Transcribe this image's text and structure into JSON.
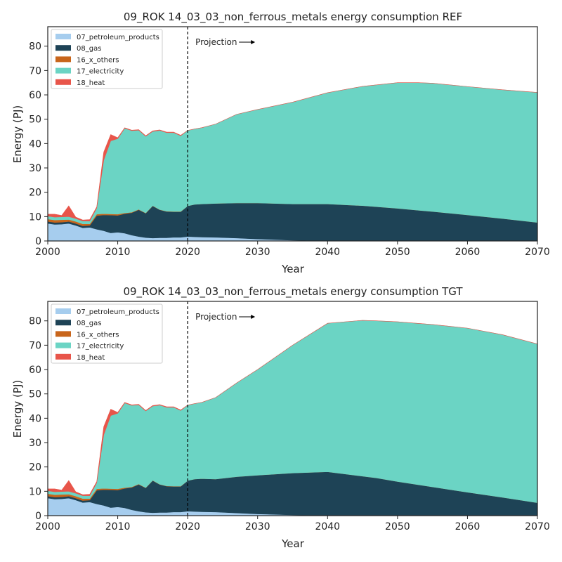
{
  "colors": {
    "07_petroleum_products": "#a6cdee",
    "08_gas": "#1e4356",
    "16_x_others": "#c8651b",
    "17_electricity": "#6bd4c4",
    "18_heat": "#e8554a"
  },
  "chart_data": [
    {
      "type": "area",
      "stacked": true,
      "title": "09_ROK 14_03_03_non_ferrous_metals energy consumption REF",
      "xlabel": "Year",
      "ylabel": "Energy (PJ)",
      "xlim": [
        2000,
        2070
      ],
      "ylim": [
        0,
        88
      ],
      "xticks": [
        2000,
        2010,
        2020,
        2030,
        2040,
        2050,
        2060,
        2070
      ],
      "yticks": [
        0,
        10,
        20,
        30,
        40,
        50,
        60,
        70,
        80
      ],
      "legend": "top-left",
      "annotation": {
        "text": "Projection",
        "x": 2020
      },
      "x": [
        2000,
        2001,
        2002,
        2003,
        2004,
        2005,
        2006,
        2007,
        2008,
        2009,
        2010,
        2011,
        2012,
        2013,
        2014,
        2015,
        2016,
        2017,
        2018,
        2019,
        2020,
        2021,
        2022,
        2024,
        2027,
        2030,
        2035,
        2040,
        2045,
        2050,
        2053,
        2055,
        2060,
        2065,
        2070
      ],
      "series": [
        {
          "name": "07_petroleum_products",
          "values": [
            7.2,
            6.8,
            6.9,
            7.2,
            6.4,
            5.4,
            5.6,
            4.8,
            4.2,
            3.3,
            3.6,
            3.2,
            2.4,
            1.8,
            1.4,
            1.2,
            1.3,
            1.3,
            1.5,
            1.5,
            1.8,
            1.7,
            1.6,
            1.5,
            1.2,
            0.8,
            0.3,
            0,
            0,
            0,
            0,
            0,
            0,
            0,
            0
          ]
        },
        {
          "name": "08_gas",
          "values": [
            0.8,
            0.8,
            0.8,
            0.8,
            0.8,
            0.8,
            0.8,
            5.6,
            6.5,
            7.3,
            6.9,
            8.0,
            9.2,
            11.0,
            10.0,
            13.2,
            11.5,
            10.8,
            10.5,
            10.5,
            12.6,
            13.3,
            13.6,
            13.9,
            14.4,
            14.8,
            14.9,
            15.2,
            14.5,
            13.4,
            12.6,
            12.1,
            10.7,
            9.2,
            7.6
          ]
        },
        {
          "name": "16_x_others",
          "values": [
            1.0,
            1.0,
            1.0,
            0.8,
            0.8,
            0.8,
            0.6,
            0.6,
            0.5,
            0.5,
            0.5,
            0.3,
            0.2,
            0.2,
            0.1,
            0.1,
            0.1,
            0.1,
            0.1,
            0.1,
            0,
            0,
            0,
            0,
            0,
            0,
            0,
            0,
            0,
            0,
            0,
            0,
            0,
            0,
            0
          ]
        },
        {
          "name": "17_electricity",
          "values": [
            1.2,
            1.2,
            1.2,
            1.2,
            1.2,
            1.2,
            1.2,
            2.5,
            22.0,
            30.0,
            31.0,
            34.8,
            33.5,
            32.5,
            31.5,
            30.5,
            32.5,
            32.3,
            32.4,
            31.1,
            31.0,
            31.0,
            31.3,
            32.6,
            36.4,
            38.4,
            41.8,
            45.7,
            49.0,
            51.6,
            52.4,
            52.7,
            52.7,
            52.9,
            53.4
          ]
        },
        {
          "name": "18_heat",
          "values": [
            0.8,
            1.2,
            0.6,
            4.4,
            0.6,
            0.4,
            0.6,
            0.5,
            3.3,
            2.6,
            0.4,
            0.2,
            0.2,
            0.2,
            0.2,
            0.2,
            0.2,
            0.2,
            0.2,
            0.2,
            0,
            0,
            0,
            0,
            0,
            0,
            0,
            0,
            0,
            0,
            0,
            0,
            0,
            0,
            0
          ]
        }
      ]
    },
    {
      "type": "area",
      "stacked": true,
      "title": "09_ROK 14_03_03_non_ferrous_metals energy consumption TGT",
      "xlabel": "Year",
      "ylabel": "Energy (PJ)",
      "xlim": [
        2000,
        2070
      ],
      "ylim": [
        0,
        88
      ],
      "xticks": [
        2000,
        2010,
        2020,
        2030,
        2040,
        2050,
        2060,
        2070
      ],
      "yticks": [
        0,
        10,
        20,
        30,
        40,
        50,
        60,
        70,
        80
      ],
      "legend": "top-left",
      "annotation": {
        "text": "Projection",
        "x": 2020
      },
      "x": [
        2000,
        2001,
        2002,
        2003,
        2004,
        2005,
        2006,
        2007,
        2008,
        2009,
        2010,
        2011,
        2012,
        2013,
        2014,
        2015,
        2016,
        2017,
        2018,
        2019,
        2020,
        2021,
        2022,
        2024,
        2027,
        2030,
        2035,
        2040,
        2045,
        2047,
        2050,
        2055,
        2060,
        2065,
        2070
      ],
      "series": [
        {
          "name": "07_petroleum_products",
          "values": [
            7.2,
            6.8,
            6.9,
            7.2,
            6.4,
            5.4,
            5.6,
            4.8,
            4.2,
            3.3,
            3.6,
            3.2,
            2.4,
            1.8,
            1.4,
            1.2,
            1.3,
            1.3,
            1.5,
            1.5,
            1.8,
            1.7,
            1.6,
            1.5,
            1.1,
            0.7,
            0.3,
            0,
            0,
            0,
            0,
            0,
            0,
            0,
            0
          ]
        },
        {
          "name": "08_gas",
          "values": [
            0.8,
            0.8,
            0.8,
            0.8,
            0.8,
            0.8,
            0.8,
            5.6,
            6.5,
            7.3,
            6.9,
            8.0,
            9.2,
            11.0,
            10.0,
            13.2,
            11.5,
            10.8,
            10.5,
            10.5,
            12.6,
            13.3,
            13.6,
            13.5,
            14.9,
            15.9,
            17.2,
            18.0,
            16.2,
            15.5,
            14.0,
            11.8,
            9.6,
            7.5,
            5.3
          ]
        },
        {
          "name": "16_x_others",
          "values": [
            1.0,
            1.0,
            1.0,
            0.8,
            0.8,
            0.8,
            0.6,
            0.6,
            0.5,
            0.5,
            0.5,
            0.3,
            0.2,
            0.2,
            0.1,
            0.1,
            0.1,
            0.1,
            0.1,
            0.1,
            0,
            0,
            0,
            0,
            0,
            0,
            0,
            0,
            0,
            0,
            0,
            0,
            0,
            0,
            0
          ]
        },
        {
          "name": "17_electricity",
          "values": [
            1.2,
            1.2,
            1.2,
            1.2,
            1.2,
            1.2,
            1.2,
            2.5,
            22.0,
            30.0,
            31.0,
            34.8,
            33.5,
            32.5,
            31.5,
            30.5,
            32.5,
            32.3,
            32.4,
            31.1,
            31.0,
            31.0,
            31.3,
            33.5,
            38.5,
            43.4,
            52.5,
            61.0,
            64.0,
            64.5,
            65.6,
            66.7,
            67.4,
            66.8,
            65.2
          ]
        },
        {
          "name": "18_heat",
          "values": [
            0.8,
            1.2,
            0.6,
            4.4,
            0.6,
            0.4,
            0.6,
            0.5,
            3.3,
            2.6,
            0.4,
            0.2,
            0.2,
            0.2,
            0.2,
            0.2,
            0.2,
            0.2,
            0.2,
            0.2,
            0,
            0,
            0,
            0,
            0,
            0,
            0,
            0,
            0,
            0,
            0,
            0,
            0,
            0,
            0
          ]
        }
      ]
    }
  ]
}
